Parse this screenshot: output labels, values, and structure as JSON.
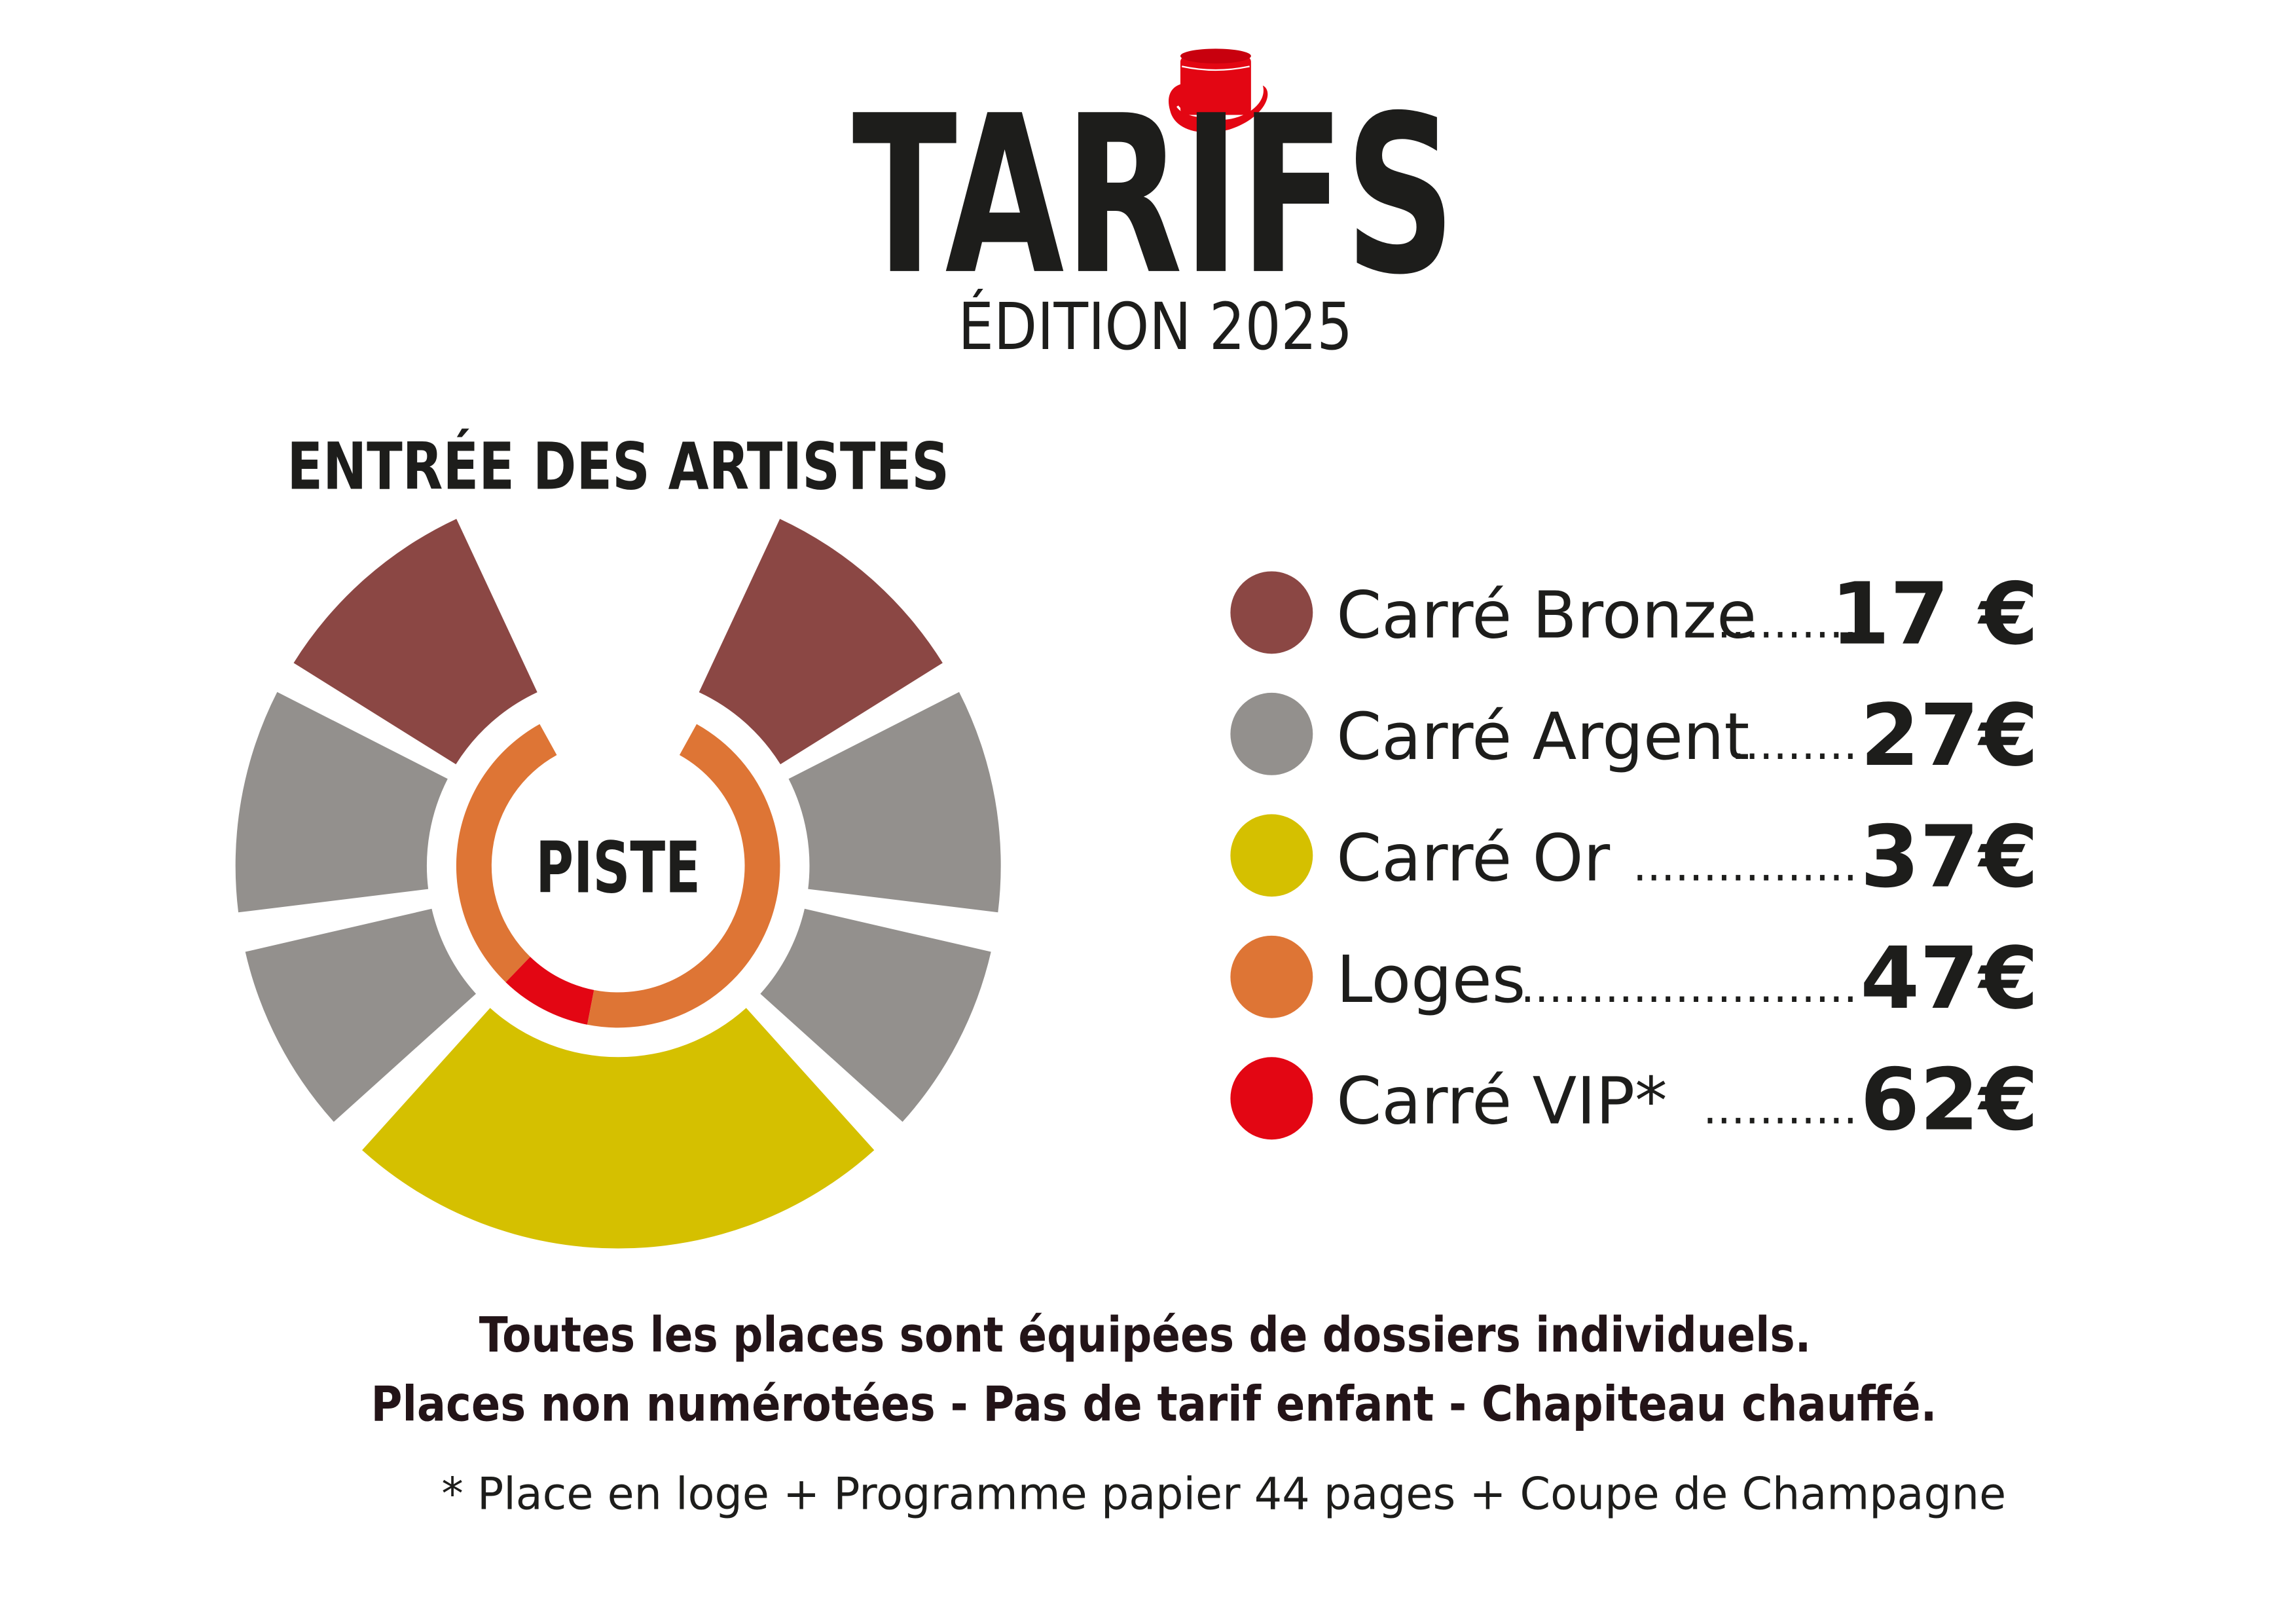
{
  "header": {
    "title": "TARIFS",
    "subtitle": "ÉDITION 2025",
    "logo": "red-top-hat"
  },
  "plan": {
    "entrance_label": "ENTRÉE DES ARTISTES",
    "center_label": "PISTE",
    "zones": [
      {
        "category": "Carré Bronze",
        "color": "#8b4744"
      },
      {
        "category": "Carré Argent",
        "color": "#93908d"
      },
      {
        "category": "Carré Or",
        "color": "#d5c000"
      },
      {
        "category": "Loges",
        "color": "#de7535"
      },
      {
        "category": "Carré VIP",
        "color": "#e30613"
      }
    ]
  },
  "legend": {
    "items": [
      {
        "label": "Carré Bronze",
        "dots": "..........",
        "price": "17 €",
        "color": "#8b4744"
      },
      {
        "label": "Carré Argent",
        "dots": ".........",
        "price": "27€",
        "color": "#93908d"
      },
      {
        "label": "Carré Or",
        "dots": "................",
        "price": "37€",
        "color": "#d5c000"
      },
      {
        "label": "Loges",
        "dots": "........................",
        "price": "47€",
        "color": "#de7535"
      },
      {
        "label": "Carré VIP*",
        "dots": "...........",
        "price": "62€",
        "color": "#e30613"
      }
    ]
  },
  "footer": {
    "line1": "Toutes les places sont équipées de dossiers individuels.",
    "line2": "Places non numérotées - Pas de tarif enfant - Chapiteau chauffé.",
    "note": "* Place en loge + Programme papier 44 pages + Coupe de Champagne"
  }
}
